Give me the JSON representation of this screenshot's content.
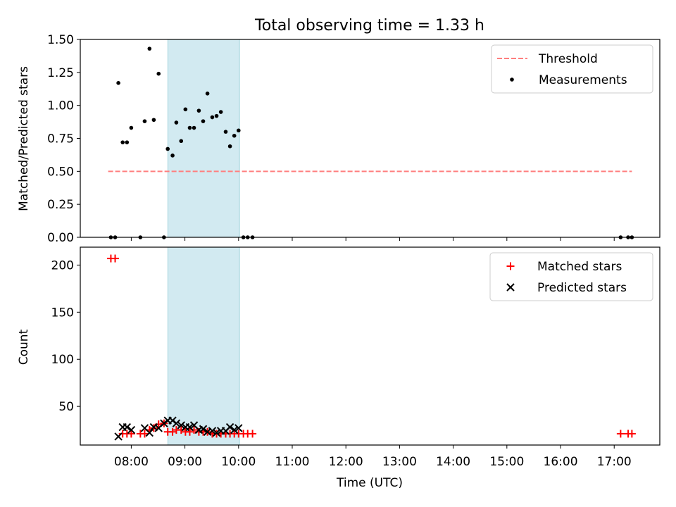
{
  "chart_data": {
    "type": "scatter",
    "title": "Total observing time = 1.33 h",
    "xlabel": "Time (UTC)",
    "x_unit": "hours UTC",
    "xlim": [
      7.05,
      17.85
    ],
    "x_ticks": [
      8,
      9,
      10,
      11,
      12,
      13,
      14,
      15,
      16,
      17
    ],
    "x_tick_labels": [
      "08:00",
      "09:00",
      "10:00",
      "11:00",
      "12:00",
      "13:00",
      "14:00",
      "15:00",
      "16:00",
      "17:00"
    ],
    "observing_window": {
      "start": 8.683,
      "end": 10.017,
      "color": "#add8e6"
    },
    "panels": [
      {
        "ylabel": "Matched/Predicted stars",
        "ylim": [
          0,
          1.5
        ],
        "y_ticks": [
          0,
          0.25,
          0.5,
          0.75,
          1.0,
          1.25,
          1.5
        ],
        "y_tick_labels": [
          "0.00",
          "0.25",
          "0.50",
          "0.75",
          "1.00",
          "1.25",
          "1.50"
        ],
        "legend_position": "top-right",
        "series": [
          {
            "name": "Threshold",
            "style": "dashed-line",
            "color": "#ff7f7f",
            "x": [
              7.57,
              17.33
            ],
            "y": [
              0.5,
              0.5
            ]
          },
          {
            "name": "Measurements",
            "style": "dot",
            "color": "#000000",
            "points": [
              [
                7.62,
                0.0
              ],
              [
                7.7,
                0.0
              ],
              [
                7.76,
                1.17
              ],
              [
                7.84,
                0.72
              ],
              [
                7.92,
                0.72
              ],
              [
                8.0,
                0.83
              ],
              [
                8.17,
                0.0
              ],
              [
                8.25,
                0.88
              ],
              [
                8.34,
                1.43
              ],
              [
                8.42,
                0.89
              ],
              [
                8.51,
                1.24
              ],
              [
                8.61,
                0.0
              ],
              [
                8.68,
                0.67
              ],
              [
                8.77,
                0.62
              ],
              [
                8.84,
                0.87
              ],
              [
                8.93,
                0.73
              ],
              [
                9.01,
                0.97
              ],
              [
                9.09,
                0.83
              ],
              [
                9.17,
                0.83
              ],
              [
                9.26,
                0.96
              ],
              [
                9.34,
                0.88
              ],
              [
                9.42,
                1.09
              ],
              [
                9.51,
                0.91
              ],
              [
                9.59,
                0.92
              ],
              [
                9.67,
                0.95
              ],
              [
                9.76,
                0.8
              ],
              [
                9.84,
                0.69
              ],
              [
                9.92,
                0.77
              ],
              [
                10.0,
                0.81
              ],
              [
                10.09,
                0.0
              ],
              [
                10.17,
                0.0
              ],
              [
                10.26,
                0.0
              ],
              [
                17.12,
                0.0
              ],
              [
                17.26,
                0.0
              ],
              [
                17.33,
                0.0
              ]
            ]
          }
        ]
      },
      {
        "ylabel": "Count",
        "ylim": [
          9,
          219
        ],
        "y_ticks": [
          50,
          100,
          150,
          200
        ],
        "y_tick_labels": [
          "50",
          "100",
          "150",
          "200"
        ],
        "legend_position": "top-right",
        "series": [
          {
            "name": "Matched stars",
            "marker": "plus",
            "color": "#ff0000",
            "points": [
              [
                7.62,
                207
              ],
              [
                7.7,
                207
              ],
              [
                7.84,
                21
              ],
              [
                7.92,
                21
              ],
              [
                8.0,
                21
              ],
              [
                8.17,
                21
              ],
              [
                8.25,
                21
              ],
              [
                8.34,
                25
              ],
              [
                8.42,
                27
              ],
              [
                8.51,
                31
              ],
              [
                8.61,
                32
              ],
              [
                8.68,
                23
              ],
              [
                8.77,
                23
              ],
              [
                8.84,
                25
              ],
              [
                8.93,
                25
              ],
              [
                9.01,
                23
              ],
              [
                9.09,
                23
              ],
              [
                9.17,
                25
              ],
              [
                9.26,
                23
              ],
              [
                9.34,
                23
              ],
              [
                9.42,
                23
              ],
              [
                9.51,
                21
              ],
              [
                9.59,
                21
              ],
              [
                9.67,
                21
              ],
              [
                9.76,
                21
              ],
              [
                9.84,
                21
              ],
              [
                9.92,
                21
              ],
              [
                10.0,
                21
              ],
              [
                10.09,
                21
              ],
              [
                10.17,
                21
              ],
              [
                10.26,
                21
              ],
              [
                17.12,
                21
              ],
              [
                17.26,
                21
              ],
              [
                17.33,
                21
              ]
            ]
          },
          {
            "name": "Predicted stars",
            "marker": "x",
            "color": "#000000",
            "points": [
              [
                7.76,
                18
              ],
              [
                7.84,
                28
              ],
              [
                7.92,
                28
              ],
              [
                8.0,
                25
              ],
              [
                8.25,
                27
              ],
              [
                8.34,
                22
              ],
              [
                8.42,
                28
              ],
              [
                8.51,
                27
              ],
              [
                8.61,
                32
              ],
              [
                8.68,
                35
              ],
              [
                8.77,
                35
              ],
              [
                8.84,
                32
              ],
              [
                8.93,
                30
              ],
              [
                9.01,
                28
              ],
              [
                9.09,
                28
              ],
              [
                9.17,
                30
              ],
              [
                9.26,
                25
              ],
              [
                9.34,
                26
              ],
              [
                9.42,
                23
              ],
              [
                9.51,
                24
              ],
              [
                9.59,
                22
              ],
              [
                9.67,
                24
              ],
              [
                9.76,
                24
              ],
              [
                9.84,
                28
              ],
              [
                9.92,
                25
              ],
              [
                10.0,
                27
              ]
            ]
          }
        ]
      }
    ]
  }
}
